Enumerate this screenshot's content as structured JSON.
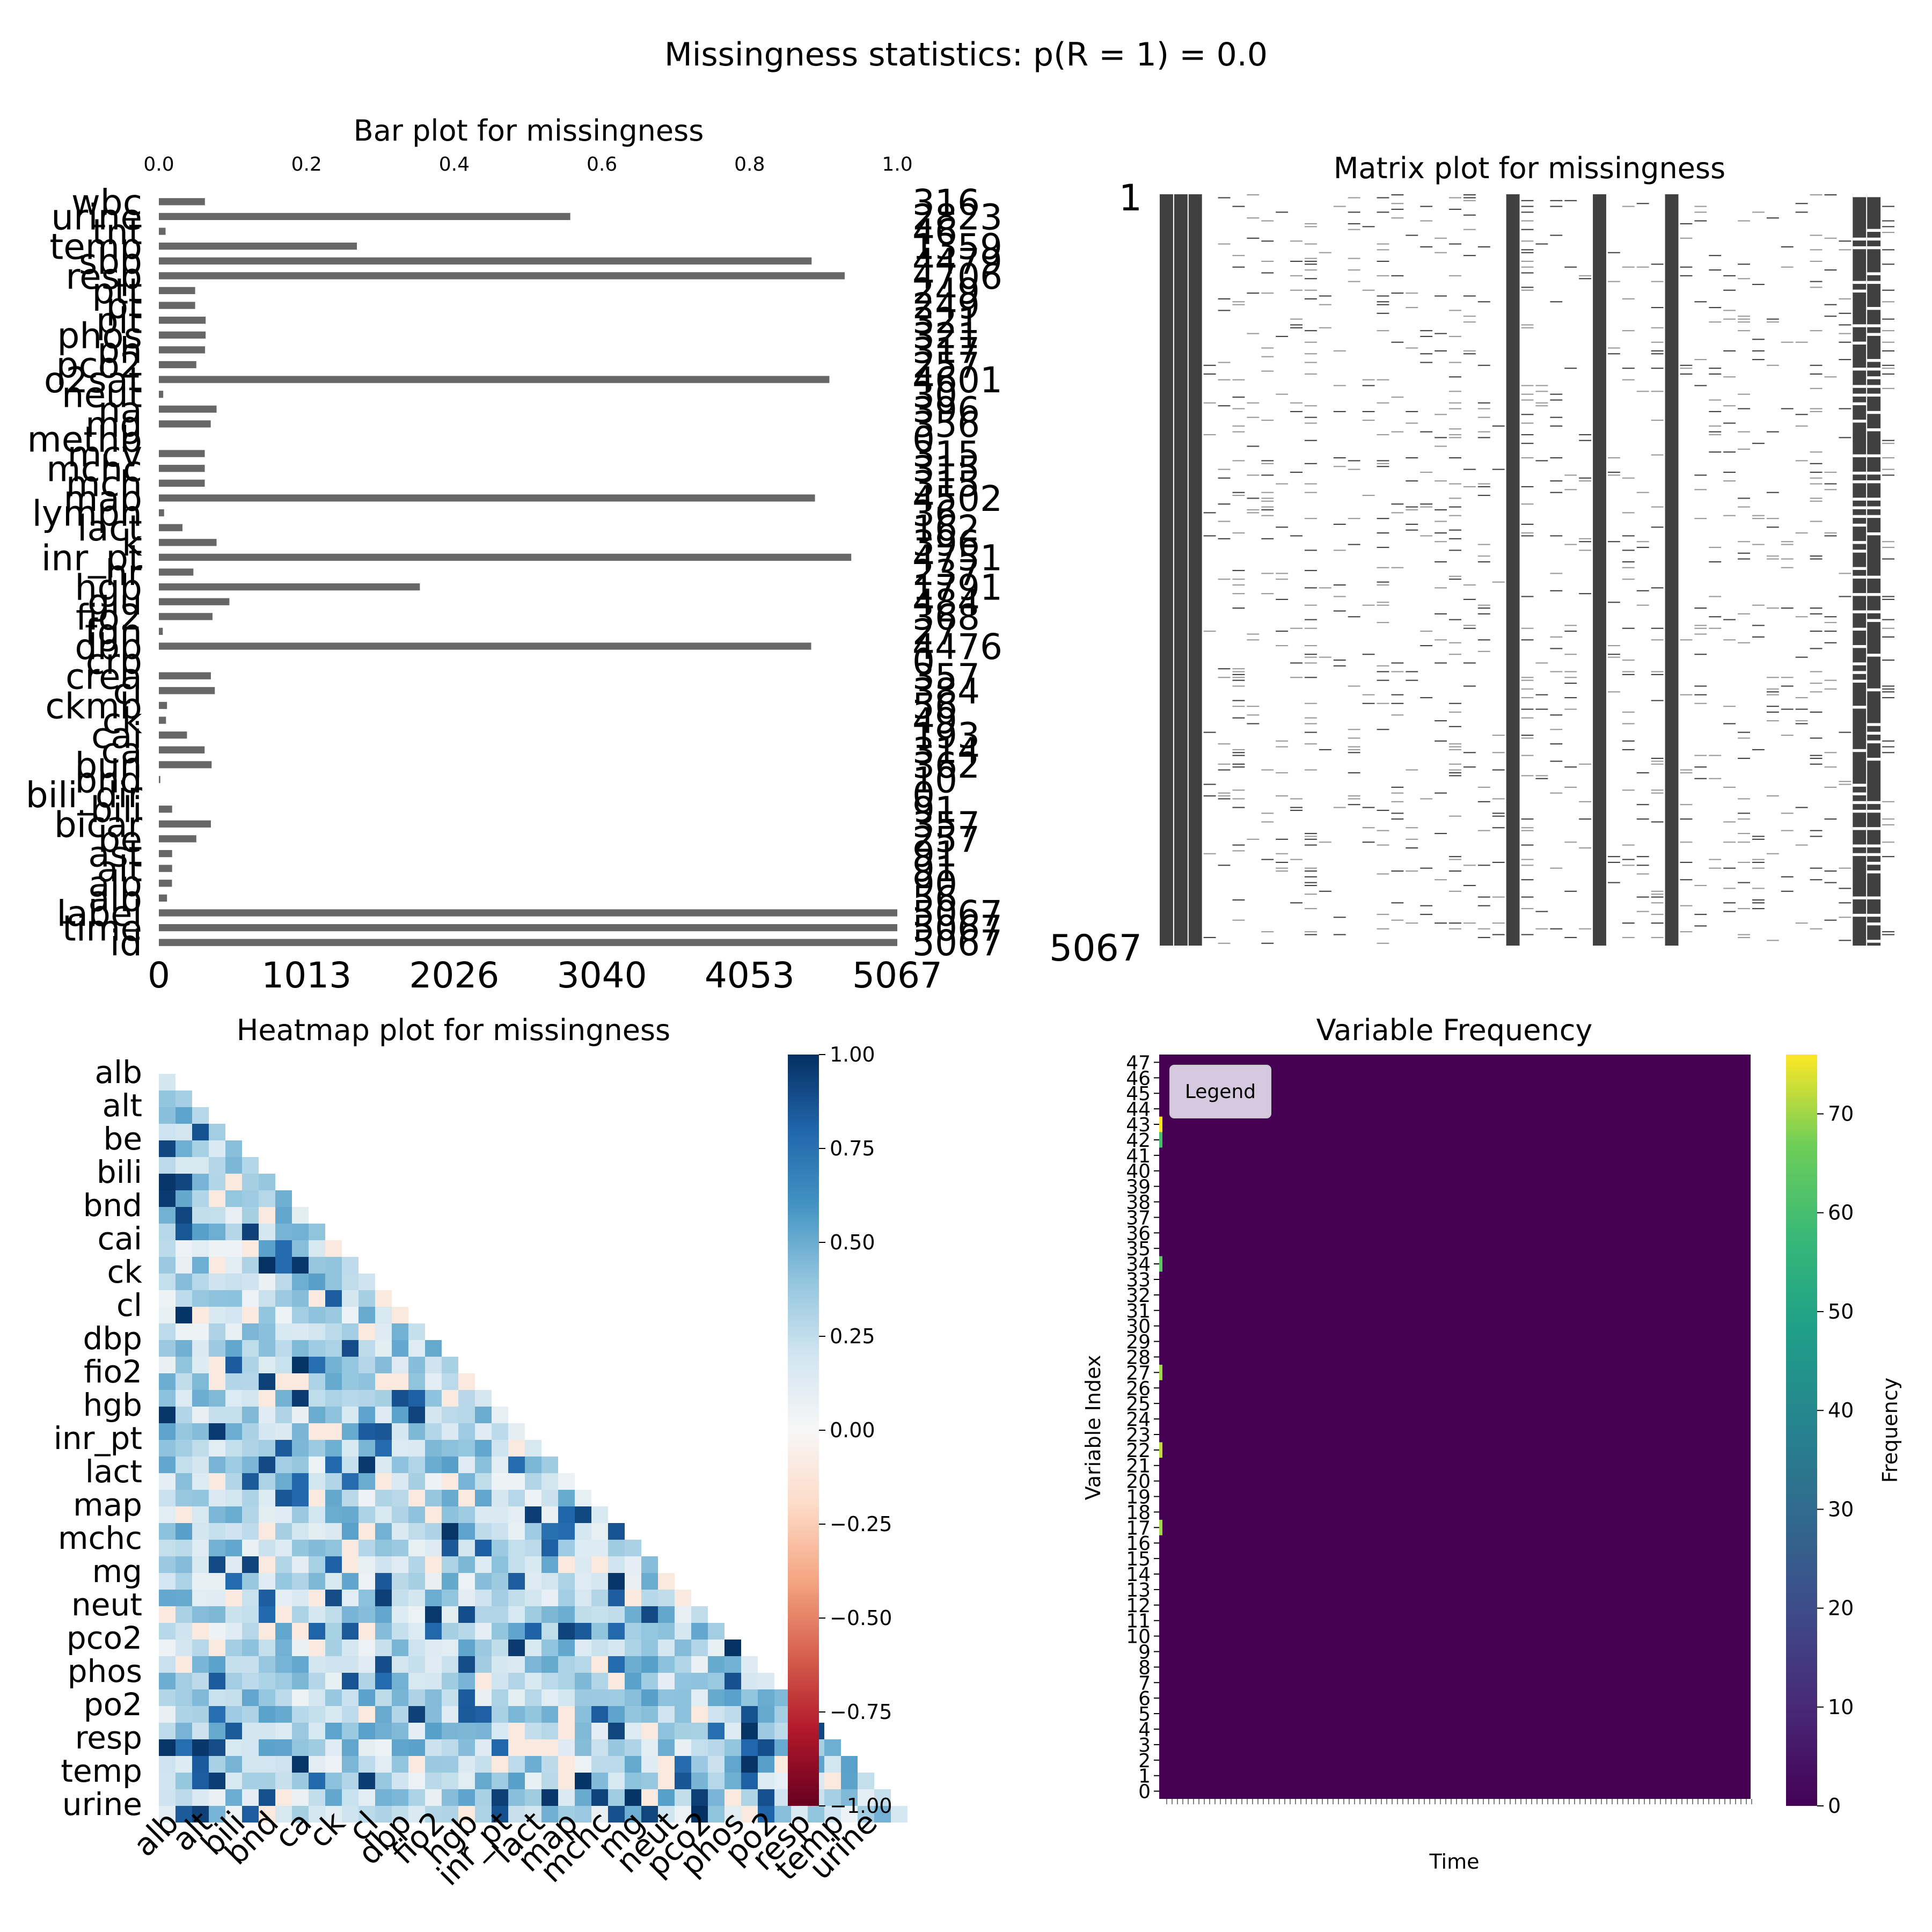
{
  "suptitle": "Missingness statistics: p(R = 1) = 0.0",
  "chart_data": [
    {
      "type": "bar",
      "orientation": "horizontal",
      "title": "Bar plot for missingness",
      "categories": [
        "wbc",
        "urine",
        "tnt",
        "temp",
        "sbp",
        "resp",
        "ptt",
        "pt",
        "plt",
        "phos",
        "ph",
        "pco2",
        "o2sat",
        "neut",
        "na",
        "mg",
        "methb",
        "mcv",
        "mchc",
        "mch",
        "map",
        "lymph",
        "lact",
        "k",
        "inr_pt",
        "hr",
        "hgb",
        "glu",
        "fio2",
        "fgn",
        "dbp",
        "crp",
        "crea",
        "cl",
        "ckmb",
        "ck",
        "cai",
        "ca",
        "bun",
        "bnd",
        "bili_dir",
        "bili",
        "bicar",
        "be",
        "ast",
        "alt",
        "alp",
        "alb",
        "label",
        "time",
        "id"
      ],
      "values": [
        316,
        2823,
        46,
        1359,
        4479,
        4706,
        249,
        249,
        321,
        321,
        317,
        257,
        4601,
        30,
        396,
        356,
        0,
        315,
        315,
        315,
        4502,
        36,
        162,
        396,
        4751,
        237,
        1791,
        484,
        368,
        27,
        4476,
        0,
        357,
        384,
        56,
        49,
        193,
        314,
        362,
        10,
        0,
        91,
        357,
        257,
        91,
        91,
        90,
        56,
        5067,
        5067,
        5067
      ],
      "value_labels": [
        "316",
        "2823",
        "46",
        "1359",
        "4479",
        "4706",
        "249",
        "249",
        "321",
        "321",
        "317",
        "257",
        "4601",
        "30",
        "396",
        "356",
        "0",
        "315",
        "315",
        "315",
        "4502",
        "36",
        "162",
        "396",
        "4751",
        "237",
        "1791",
        "484",
        "368",
        "27",
        "4476",
        "0",
        "357",
        "384",
        "56",
        "49",
        "193",
        "314",
        "362",
        "10",
        "0",
        "91",
        "357",
        "257",
        "91",
        "91",
        "90",
        "56",
        "5067",
        "5067",
        "5067"
      ],
      "xlim": [
        0,
        5067
      ],
      "xticks_bottom": [
        "0",
        "1013",
        "2026",
        "3040",
        "4053",
        "5067"
      ],
      "xticks_top": [
        "0.0",
        "0.2",
        "0.4",
        "0.6",
        "0.8",
        "1.0"
      ],
      "bar_color": "#676767"
    },
    {
      "type": "matrix",
      "title": "Matrix plot for missingness",
      "row_start_label": "1",
      "row_end_label": "5067",
      "n_rows": 5067,
      "n_columns": 51,
      "fill_color": "#404040"
    },
    {
      "type": "heatmap",
      "title": "Heatmap plot for missingness",
      "row_labels": [
        "alb",
        "alt",
        "be",
        "bili",
        "bnd",
        "cai",
        "ck",
        "cl",
        "dbp",
        "fio2",
        "hgb",
        "inr_pt",
        "lact",
        "map",
        "mchc",
        "mg",
        "neut",
        "pco2",
        "phos",
        "po2",
        "resp",
        "temp",
        "urine"
      ],
      "col_labels": [
        "alb",
        "alt",
        "bili",
        "bnd",
        "ca",
        "ck",
        "cl",
        "dbp",
        "fio2",
        "hgb",
        "inr_pt",
        "lact",
        "map",
        "mchc",
        "mg",
        "neut",
        "pco2",
        "phos",
        "po2",
        "resp",
        "temp",
        "urine"
      ],
      "colorbar_ticks": [
        "1.00",
        "0.75",
        "0.50",
        "0.25",
        "0.00",
        "−0.25",
        "−0.50",
        "−0.75",
        "−1.00"
      ],
      "vmin": -1,
      "vmax": 1,
      "cmap": [
        "#67001f",
        "#b2182b",
        "#d6604d",
        "#f4a582",
        "#fddbc7",
        "#f7f7f7",
        "#d1e5f0",
        "#92c5de",
        "#4393c3",
        "#2166ac",
        "#053061"
      ]
    },
    {
      "type": "heatmap",
      "title": "Variable Frequency",
      "xlabel": "Time",
      "ylabel": "Variable Index",
      "yticks": [
        "0",
        "1",
        "2",
        "3",
        "4",
        "5",
        "6",
        "7",
        "8",
        "9",
        "10",
        "11",
        "12",
        "13",
        "14",
        "15",
        "16",
        "17",
        "18",
        "19",
        "20",
        "21",
        "22",
        "23",
        "24",
        "25",
        "26",
        "27",
        "28",
        "29",
        "30",
        "31",
        "32",
        "33",
        "34",
        "35",
        "36",
        "37",
        "38",
        "39",
        "40",
        "41",
        "42",
        "43",
        "44",
        "45",
        "46",
        "47"
      ],
      "colorbar_label": "Frequency",
      "colorbar_ticks": [
        "70",
        "60",
        "50",
        "40",
        "30",
        "20",
        "10",
        "0"
      ],
      "vmin": 0,
      "vmax": 76,
      "legend_text": "Legend",
      "bright_cells": [
        {
          "variable": 43,
          "time": 0,
          "value": 76
        },
        {
          "variable": 42,
          "time": 0,
          "value": 60
        },
        {
          "variable": 34,
          "time": 0,
          "value": 64
        },
        {
          "variable": 27,
          "time": 0,
          "value": 70
        },
        {
          "variable": 22,
          "time": 0,
          "value": 72
        },
        {
          "variable": 17,
          "time": 0,
          "value": 70
        }
      ],
      "bg_color": "#440154"
    }
  ]
}
